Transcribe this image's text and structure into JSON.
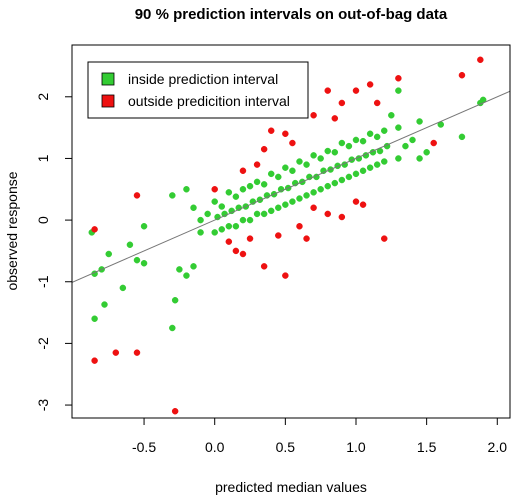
{
  "chart_data": {
    "type": "scatter",
    "title": "90 % prediction intervals on out-of-bag data",
    "x_label": "predicted median values",
    "y_label": "observed response",
    "xlim": [
      -1.01,
      2.09
    ],
    "ylim": [
      -3.21,
      2.84
    ],
    "xticks": [
      -0.5,
      {
        "value": 0,
        "label": "0.0"
      },
      0.5,
      {
        "value": 1,
        "label": "1.0"
      },
      1.5,
      {
        "value": 2,
        "label": "2.0"
      }
    ],
    "yticks": [
      -3,
      -2,
      -1,
      0,
      1,
      2
    ],
    "legend": "top-left",
    "identity_line": true,
    "series": [
      {
        "name": "inside prediction interval",
        "color": "#33cc33",
        "x": [
          -0.87,
          -0.85,
          -0.85,
          -0.78,
          -0.8,
          -0.75,
          -0.65,
          -0.6,
          -0.55,
          -0.5,
          -0.5,
          -0.3,
          -0.28,
          -0.3,
          -0.25,
          -0.2,
          -0.2,
          -0.15,
          1.75,
          1.9,
          1.88,
          1.6,
          1.5,
          1.3,
          1.45,
          0.0,
          0.05,
          0.1,
          0.15,
          0.2,
          0.25,
          0.3,
          0.35,
          0.4,
          0.45,
          0.5,
          0.55,
          0.6,
          0.65,
          0.7,
          0.75,
          0.8,
          0.85,
          0.9,
          0.95,
          1.0,
          1.05,
          1.1,
          1.15,
          1.2,
          0.02,
          0.07,
          0.12,
          0.17,
          0.22,
          0.27,
          0.32,
          0.37,
          0.42,
          0.47,
          0.52,
          0.57,
          0.62,
          0.67,
          0.72,
          0.77,
          0.82,
          0.87,
          0.92,
          0.97,
          1.02,
          1.07,
          1.12,
          1.17,
          1.22,
          0.0,
          0.05,
          0.1,
          0.15,
          0.2,
          0.25,
          0.3,
          0.35,
          0.4,
          0.45,
          0.5,
          0.55,
          0.6,
          0.65,
          0.7,
          0.75,
          0.8,
          0.85,
          0.9,
          0.95,
          1.0,
          1.05,
          1.1,
          1.15,
          1.2,
          -0.1,
          -0.05,
          -0.1,
          -0.15,
          1.3,
          1.35,
          1.4,
          1.3,
          1.25,
          1.45
        ],
        "values": [
          -0.2,
          -0.87,
          -1.6,
          -1.37,
          -0.8,
          -0.55,
          -1.1,
          -0.4,
          -0.65,
          -0.7,
          -0.1,
          -1.75,
          -1.3,
          0.4,
          -0.8,
          -0.9,
          0.5,
          -0.75,
          1.35,
          1.95,
          1.9,
          1.55,
          1.1,
          2.1,
          1.6,
          0.3,
          0.22,
          0.45,
          0.38,
          0.5,
          0.55,
          0.62,
          0.58,
          0.75,
          0.7,
          0.85,
          0.8,
          0.95,
          0.9,
          1.05,
          1.0,
          1.12,
          1.1,
          1.25,
          1.2,
          1.3,
          1.28,
          1.4,
          1.35,
          1.45,
          0.05,
          0.1,
          0.15,
          0.2,
          0.22,
          0.3,
          0.33,
          0.4,
          0.42,
          0.5,
          0.52,
          0.6,
          0.62,
          0.7,
          0.7,
          0.8,
          0.82,
          0.88,
          0.9,
          0.98,
          1.0,
          1.05,
          1.1,
          1.12,
          1.2,
          -0.2,
          -0.15,
          -0.1,
          -0.1,
          0.0,
          0.0,
          0.1,
          0.1,
          0.15,
          0.2,
          0.25,
          0.3,
          0.35,
          0.4,
          0.45,
          0.5,
          0.55,
          0.6,
          0.65,
          0.7,
          0.75,
          0.8,
          0.85,
          0.9,
          0.95,
          0.0,
          0.1,
          -0.2,
          0.2,
          1.0,
          1.2,
          1.3,
          1.5,
          1.7,
          1.0
        ]
      },
      {
        "name": "outside predicition interval",
        "color": "#ee1111",
        "x": [
          -0.85,
          -0.85,
          -0.7,
          -0.55,
          -0.55,
          -0.28,
          1.88,
          1.75,
          1.55,
          1.2,
          0.5,
          0.35,
          0.1,
          0.15,
          0.2,
          0.4,
          0.5,
          0.6,
          0.8,
          0.9,
          1.0,
          1.1,
          0.7,
          0.3,
          0.0,
          0.8,
          1.0,
          0.9,
          0.6,
          0.7,
          1.3,
          0.25,
          0.45,
          1.05,
          0.55,
          0.35,
          0.85,
          1.15,
          0.65,
          0.2
        ],
        "values": [
          -0.15,
          -2.28,
          -2.15,
          -2.15,
          0.4,
          -3.1,
          2.6,
          2.35,
          1.25,
          -0.3,
          -0.9,
          -0.75,
          -0.35,
          -0.5,
          0.8,
          1.45,
          1.4,
          1.8,
          2.1,
          1.9,
          2.1,
          2.2,
          1.7,
          0.9,
          0.5,
          0.1,
          0.3,
          0.05,
          -0.1,
          0.2,
          2.3,
          -0.3,
          -0.25,
          0.25,
          1.25,
          1.15,
          1.65,
          1.9,
          -0.3,
          -0.55
        ]
      }
    ]
  }
}
